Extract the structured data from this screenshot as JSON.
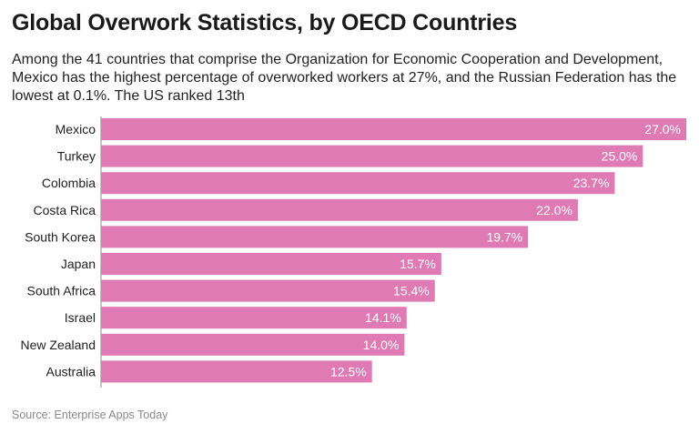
{
  "title": "Global Overwork Statistics, by OECD Countries",
  "subtitle": "Among the 41 countries that comprise the Organization for Economic Cooperation and Development, Mexico has the highest percentage of overworked workers at 27%, and the Russian Federation has the lowest at 0.1%. The US ranked 13th",
  "source": "Source: Enterprise Apps Today",
  "colors": {
    "bar": "#e07ab4",
    "bar_label": "#ffffff",
    "axis": "#888888",
    "category_label": "#222222"
  },
  "chart_data": {
    "type": "bar",
    "orientation": "horizontal",
    "categories": [
      "Mexico",
      "Turkey",
      "Colombia",
      "Costa Rica",
      "South Korea",
      "Japan",
      "South Africa",
      "Israel",
      "New Zealand",
      "Australia"
    ],
    "values": [
      27.0,
      25.0,
      23.7,
      22.0,
      19.7,
      15.7,
      15.4,
      14.1,
      14.0,
      12.5
    ],
    "value_labels": [
      "27.0%",
      "25.0%",
      "23.7%",
      "22.0%",
      "19.7%",
      "15.7%",
      "15.4%",
      "14.1%",
      "14.0%",
      "12.5%"
    ],
    "xlim": [
      0,
      27
    ],
    "grid": false,
    "legend": "none"
  }
}
